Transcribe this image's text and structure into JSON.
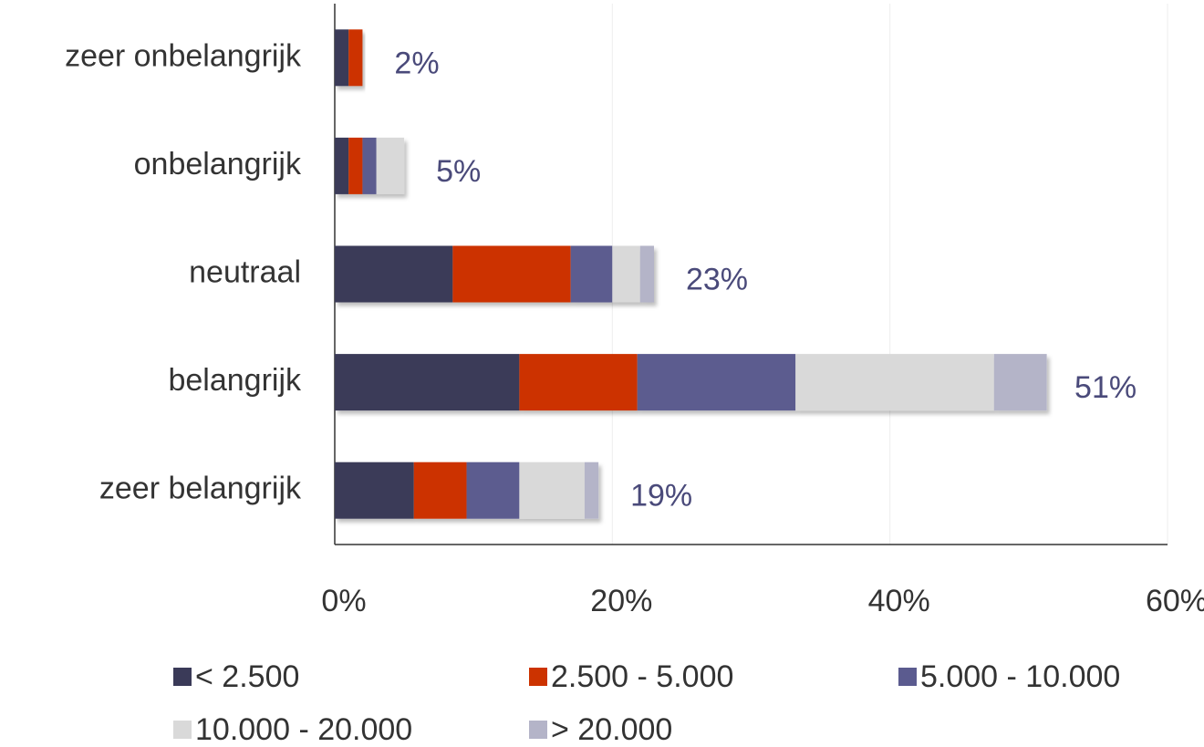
{
  "chart_data": {
    "type": "stacked_bar_horizontal",
    "categories": [
      "zeer onbelangrijk",
      "onbelangrijk",
      "neutraal",
      "belangrijk",
      "zeer belangrijk"
    ],
    "series": [
      {
        "name": "< 2.500",
        "color": "#3a3a58",
        "values": [
          1,
          1,
          8.5,
          13.3,
          5.7
        ]
      },
      {
        "name": "2.500 - 5.000",
        "color": "#cc3300",
        "values": [
          1,
          1,
          8.5,
          8.5,
          3.8
        ]
      },
      {
        "name": "5.000 - 10.000",
        "color": "#5b5b8f",
        "values": [
          0,
          1,
          3,
          11.4,
          3.8
        ]
      },
      {
        "name": "10.000 - 20.000",
        "color": "#d9d9d9",
        "values": [
          0,
          2,
          2,
          14.3,
          4.7
        ]
      },
      {
        "name": "> 20.000",
        "color": "#b4b4c8",
        "values": [
          0,
          0,
          1,
          3.8,
          1
        ]
      }
    ],
    "totals": [
      2,
      5,
      23,
      51,
      19
    ],
    "total_labels": [
      "2%",
      "5%",
      "23%",
      "51%",
      "19%"
    ],
    "xlim": [
      0,
      60
    ],
    "xticks": [
      {
        "value": 0,
        "label": "0%"
      },
      {
        "value": 20,
        "label": "20%"
      },
      {
        "value": 40,
        "label": "40%"
      },
      {
        "value": 60,
        "label": "60%"
      }
    ],
    "grid": true
  }
}
